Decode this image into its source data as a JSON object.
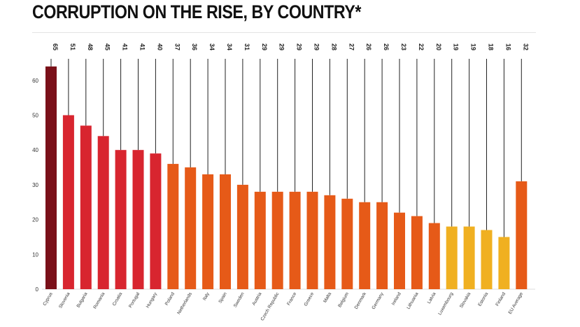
{
  "chart_data": {
    "type": "bar",
    "title": "CORRUPTION ON THE RISE, BY COUNTRY*",
    "xlabel": "",
    "ylabel": "",
    "ylim": [
      0,
      67
    ],
    "yticks": [
      0,
      10,
      20,
      30,
      40,
      50,
      60
    ],
    "grid": false,
    "categories": [
      "Cyprus",
      "Slovenia",
      "Bulgaria",
      "Romania",
      "Croatia",
      "Portugal",
      "Hungary",
      "Poland",
      "Netherlands",
      "Italy",
      "Spain",
      "Sweden",
      "Austria",
      "Czech Republic",
      "France",
      "Greece",
      "Malta",
      "Belgium",
      "Denmark",
      "Germany",
      "Ireland",
      "Lithuania",
      "Latvia",
      "Luxembourg",
      "Slovakia",
      "Estonia",
      "Finland",
      "EU Average"
    ],
    "values": [
      65,
      51,
      48,
      45,
      41,
      41,
      40,
      37,
      36,
      34,
      34,
      31,
      29,
      29,
      29,
      29,
      28,
      27,
      26,
      26,
      23,
      22,
      20,
      19,
      19,
      18,
      16,
      32
    ],
    "bar_heights": [
      64,
      50,
      47,
      44,
      40,
      40,
      39,
      36,
      35,
      33,
      33,
      30,
      28,
      28,
      28,
      28,
      27,
      26,
      25,
      25,
      22,
      21,
      19,
      18,
      18,
      17,
      15,
      31
    ],
    "data_labels": [
      "65",
      "51",
      "48",
      "45",
      "41",
      "41",
      "40",
      "37",
      "36",
      "34",
      "34",
      "31",
      "29",
      "29",
      "29",
      "29",
      "28",
      "27",
      "26",
      "26",
      "23",
      "22",
      "20",
      "19",
      "19",
      "18",
      "16",
      "32"
    ],
    "colors": [
      "#7a1019",
      "#d8252f",
      "#d8252f",
      "#d8252f",
      "#d8252f",
      "#d8252f",
      "#d8252f",
      "#e65a18",
      "#e65a18",
      "#e65a18",
      "#e65a18",
      "#e65a18",
      "#e65a18",
      "#e65a18",
      "#e65a18",
      "#e65a18",
      "#e65a18",
      "#e65a18",
      "#e65a18",
      "#e65a18",
      "#e65a18",
      "#e65a18",
      "#e65a18",
      "#f0b021",
      "#f0b021",
      "#f0b021",
      "#f0b021",
      "#e65a18"
    ]
  }
}
